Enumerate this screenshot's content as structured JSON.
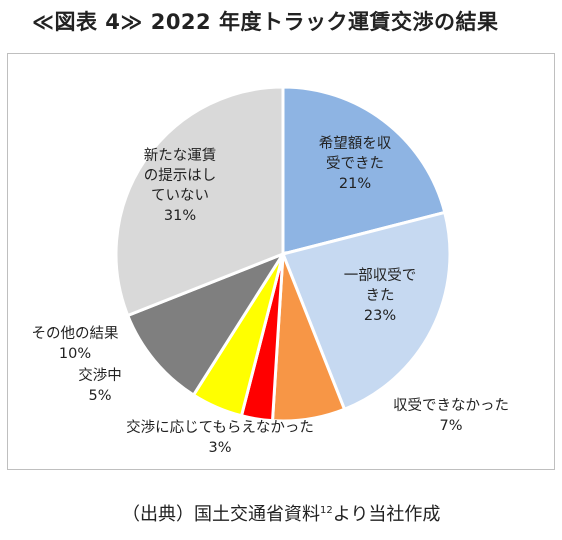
{
  "title": "≪図表 4≫ 2022 年度トラック運賃交渉の結果",
  "source": {
    "prefix": "（出典）国土交通省資料",
    "footnote": "12",
    "suffix": "より当社作成"
  },
  "chart_data": {
    "type": "pie",
    "title": "",
    "slices": [
      {
        "label": "希望額を収受できた",
        "label_lines": [
          "希望額を収",
          "受できた"
        ],
        "value": 21,
        "value_text": "21%",
        "color": "#8eb4e3"
      },
      {
        "label": "一部収受できた",
        "label_lines": [
          "一部収受で",
          "きた"
        ],
        "value": 23,
        "value_text": "23%",
        "color": "#c6d9f1"
      },
      {
        "label": "収受できなかった",
        "label_lines": [
          "収受できなかった"
        ],
        "value": 7,
        "value_text": "7%",
        "color": "#f79646"
      },
      {
        "label": "交渉に応じてもらえなかった",
        "label_lines": [
          "交渉に応じてもらえなかった"
        ],
        "value": 3,
        "value_text": "3%",
        "color": "#ff0000"
      },
      {
        "label": "交渉中",
        "label_lines": [
          "交渉中"
        ],
        "value": 5,
        "value_text": "5%",
        "color": "#ffff00"
      },
      {
        "label": "その他の結果",
        "label_lines": [
          "その他の結果"
        ],
        "value": 10,
        "value_text": "10%",
        "color": "#7f7f7f"
      },
      {
        "label": "新たな運賃の提示はしていない",
        "label_lines": [
          "新たな運賃",
          "の提示はし",
          "ていない"
        ],
        "value": 31,
        "value_text": "31%",
        "color": "#d9d9d9"
      }
    ],
    "start_angle_deg": 0,
    "direction": "clockwise",
    "legend": "none",
    "slice_border_color": "#ffffff"
  }
}
